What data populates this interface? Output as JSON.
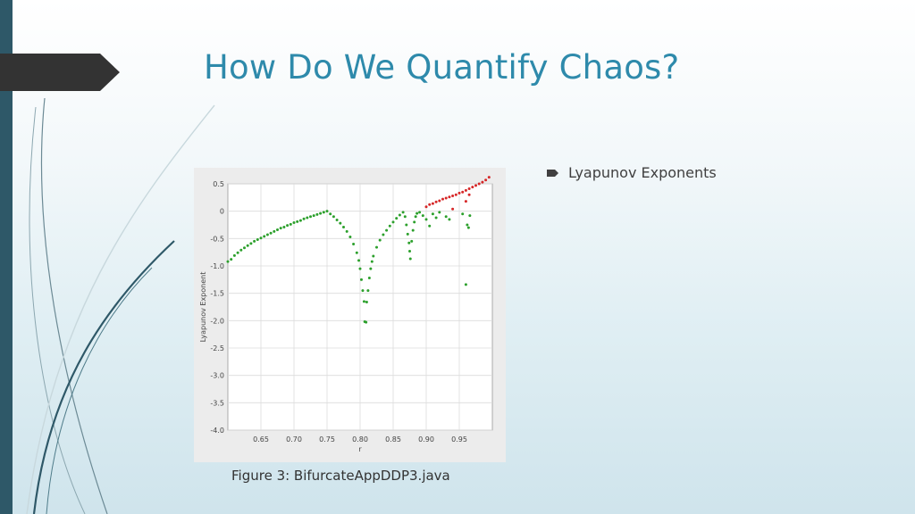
{
  "slide": {
    "title": "How Do We Quantify Chaos?",
    "bullets": [
      {
        "text": "Lyapunov Exponents"
      }
    ],
    "caption": "Figure 3: BifurcateAppDDP3.java",
    "colors": {
      "title": "#2e8aab",
      "left_bar": "#2e5868",
      "tab": "#333333",
      "stable_points": "#2ca02c",
      "chaotic_points": "#d62728"
    }
  },
  "chart_data": {
    "type": "scatter",
    "title": "",
    "xlabel": "r",
    "ylabel": "Lyapunov Exponent",
    "xlim": [
      0.6,
      1.0
    ],
    "ylim": [
      -4.0,
      0.5
    ],
    "x_ticks": [
      "0.65",
      "0.70",
      "0.75",
      "0.80",
      "0.85",
      "0.90",
      "0.95"
    ],
    "y_ticks": [
      "0.5",
      "0",
      "-0.5",
      "-1.0",
      "-1.5",
      "-2.0",
      "-2.5",
      "-3.0",
      "-3.5",
      "-4.0"
    ],
    "grid": true,
    "series": [
      {
        "color": "#2ca02c",
        "points": [
          [
            0.6,
            -0.92
          ],
          [
            0.605,
            -0.88
          ],
          [
            0.61,
            -0.81
          ],
          [
            0.615,
            -0.76
          ],
          [
            0.62,
            -0.71
          ],
          [
            0.625,
            -0.67
          ],
          [
            0.63,
            -0.63
          ],
          [
            0.635,
            -0.59
          ],
          [
            0.64,
            -0.55
          ],
          [
            0.645,
            -0.52
          ],
          [
            0.65,
            -0.49
          ],
          [
            0.655,
            -0.46
          ],
          [
            0.66,
            -0.43
          ],
          [
            0.665,
            -0.4
          ],
          [
            0.67,
            -0.37
          ],
          [
            0.675,
            -0.34
          ],
          [
            0.68,
            -0.31
          ],
          [
            0.685,
            -0.29
          ],
          [
            0.69,
            -0.26
          ],
          [
            0.695,
            -0.24
          ],
          [
            0.7,
            -0.21
          ],
          [
            0.705,
            -0.19
          ],
          [
            0.71,
            -0.17
          ],
          [
            0.715,
            -0.14
          ],
          [
            0.72,
            -0.12
          ],
          [
            0.725,
            -0.1
          ],
          [
            0.73,
            -0.08
          ],
          [
            0.735,
            -0.06
          ],
          [
            0.74,
            -0.04
          ],
          [
            0.745,
            -0.02
          ],
          [
            0.75,
            0.0
          ],
          [
            0.755,
            -0.05
          ],
          [
            0.76,
            -0.1
          ],
          [
            0.765,
            -0.16
          ],
          [
            0.77,
            -0.22
          ],
          [
            0.775,
            -0.29
          ],
          [
            0.78,
            -0.37
          ],
          [
            0.785,
            -0.47
          ],
          [
            0.79,
            -0.6
          ],
          [
            0.795,
            -0.76
          ],
          [
            0.798,
            -0.9
          ],
          [
            0.8,
            -1.05
          ],
          [
            0.802,
            -1.25
          ],
          [
            0.804,
            -1.45
          ],
          [
            0.806,
            -1.65
          ],
          [
            0.807,
            -2.02
          ],
          [
            0.809,
            -2.03
          ],
          [
            0.81,
            -1.66
          ],
          [
            0.812,
            -1.45
          ],
          [
            0.814,
            -1.22
          ],
          [
            0.816,
            -1.05
          ],
          [
            0.818,
            -0.92
          ],
          [
            0.82,
            -0.82
          ],
          [
            0.825,
            -0.66
          ],
          [
            0.83,
            -0.53
          ],
          [
            0.835,
            -0.43
          ],
          [
            0.84,
            -0.35
          ],
          [
            0.845,
            -0.27
          ],
          [
            0.85,
            -0.2
          ],
          [
            0.855,
            -0.13
          ],
          [
            0.86,
            -0.07
          ],
          [
            0.865,
            -0.02
          ],
          [
            0.868,
            -0.1
          ],
          [
            0.87,
            -0.25
          ],
          [
            0.872,
            -0.42
          ],
          [
            0.874,
            -0.58
          ],
          [
            0.875,
            -0.73
          ],
          [
            0.876,
            -0.87
          ],
          [
            0.878,
            -0.55
          ],
          [
            0.88,
            -0.35
          ],
          [
            0.882,
            -0.2
          ],
          [
            0.884,
            -0.1
          ],
          [
            0.886,
            -0.04
          ],
          [
            0.89,
            -0.02
          ],
          [
            0.895,
            -0.08
          ],
          [
            0.9,
            -0.15
          ],
          [
            0.905,
            -0.27
          ],
          [
            0.91,
            -0.05
          ],
          [
            0.915,
            -0.12
          ],
          [
            0.92,
            -0.02
          ],
          [
            0.93,
            -0.1
          ],
          [
            0.935,
            -0.15
          ],
          [
            0.955,
            -0.05
          ],
          [
            0.96,
            -1.34
          ],
          [
            0.962,
            -0.25
          ],
          [
            0.964,
            -0.3
          ],
          [
            0.966,
            -0.08
          ]
        ]
      },
      {
        "color": "#d62728",
        "points": [
          [
            0.9,
            0.08
          ],
          [
            0.905,
            0.12
          ],
          [
            0.91,
            0.14
          ],
          [
            0.915,
            0.17
          ],
          [
            0.92,
            0.19
          ],
          [
            0.925,
            0.22
          ],
          [
            0.93,
            0.24
          ],
          [
            0.935,
            0.26
          ],
          [
            0.94,
            0.28
          ],
          [
            0.945,
            0.3
          ],
          [
            0.95,
            0.33
          ],
          [
            0.955,
            0.35
          ],
          [
            0.96,
            0.38
          ],
          [
            0.965,
            0.41
          ],
          [
            0.97,
            0.44
          ],
          [
            0.975,
            0.47
          ],
          [
            0.98,
            0.5
          ],
          [
            0.985,
            0.53
          ],
          [
            0.99,
            0.57
          ],
          [
            0.995,
            0.62
          ],
          [
            0.94,
            0.04
          ],
          [
            0.96,
            0.18
          ],
          [
            0.965,
            0.3
          ]
        ]
      }
    ]
  }
}
